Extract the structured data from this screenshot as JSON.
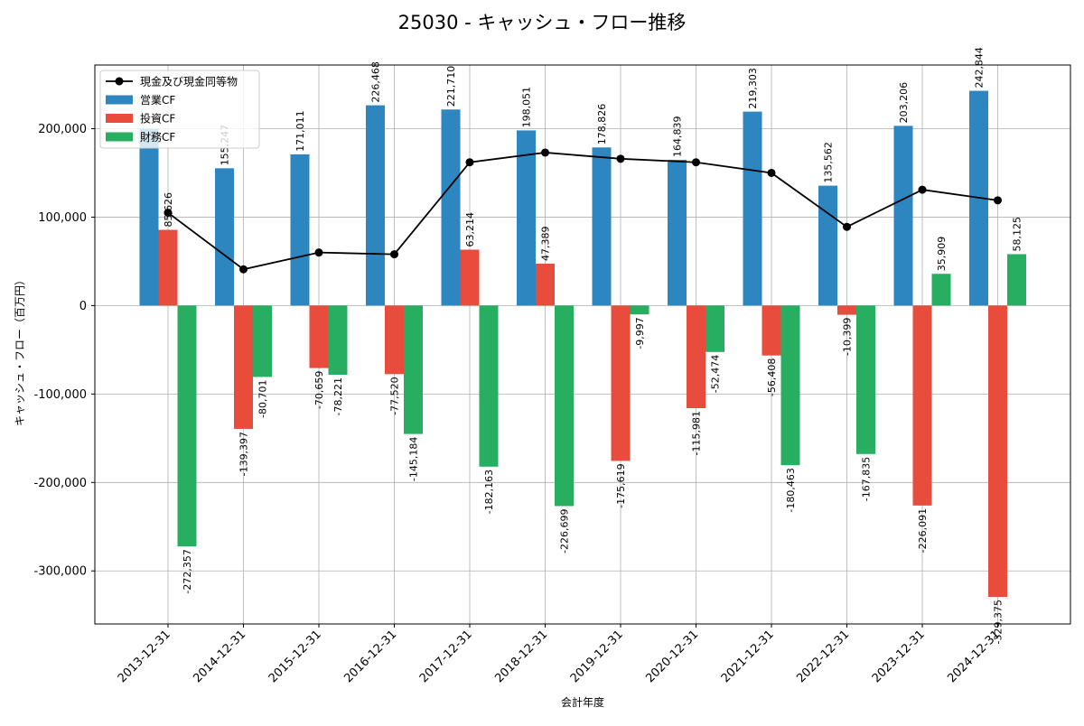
{
  "chart_data": {
    "type": "bar",
    "title": "25030 - キャッシュ・フロー推移",
    "xlabel": "会計年度",
    "ylabel": "キャッシュ・フロー（百万円）",
    "ylim": [
      -360000,
      272000
    ],
    "yticks": [
      -300000,
      -200000,
      -100000,
      0,
      100000,
      200000
    ],
    "ytick_labels": [
      "-300,000",
      "-200,000",
      "-100,000",
      "0",
      "100,000",
      "200,000"
    ],
    "grid": true,
    "legend_position": "top-left",
    "categories": [
      "2013-12-31",
      "2014-12-31",
      "2015-12-31",
      "2016-12-31",
      "2017-12-31",
      "2018-12-31",
      "2019-12-31",
      "2020-12-31",
      "2021-12-31",
      "2022-12-31",
      "2023-12-31",
      "2024-12-31"
    ],
    "series": [
      {
        "name": "営業CF",
        "kind": "bar",
        "color": "#2e86c1",
        "values": [
          200000,
          155247,
          171011,
          226468,
          221710,
          198051,
          178826,
          164839,
          219303,
          135562,
          203206,
          242844
        ],
        "labels": [
          "",
          "155,247",
          "171,011",
          "226,468",
          "221,710",
          "198,051",
          "178,826",
          "164,839",
          "219,303",
          "135,562",
          "203,206",
          "242,844"
        ]
      },
      {
        "name": "投資CF",
        "kind": "bar",
        "color": "#e74c3c",
        "values": [
          85626,
          -139397,
          -70659,
          -77520,
          63214,
          47389,
          -175619,
          -115981,
          -56408,
          -10399,
          -226091,
          -329375
        ],
        "labels": [
          "85,626",
          "-139,397",
          "-70,659",
          "-77,520",
          "63,214",
          "47,389",
          "-175,619",
          "-115,981",
          "-56,408",
          "-10,399",
          "-226,091",
          "-329,375"
        ]
      },
      {
        "name": "財務CF",
        "kind": "bar",
        "color": "#27ae60",
        "values": [
          -272357,
          -80701,
          -78221,
          -145184,
          -182163,
          -226699,
          -9997,
          -52474,
          -180463,
          -167835,
          35909,
          58125
        ],
        "labels": [
          "-272,357",
          "-80,701",
          "-78,221",
          "-145,184",
          "-182,163",
          "-226,699",
          "-9,997",
          "-52,474",
          "-180,463",
          "-167,835",
          "35,909",
          "58,125"
        ]
      },
      {
        "name": "現金及び現金同等物",
        "kind": "line",
        "color": "#000000",
        "values": [
          105000,
          41000,
          60000,
          58000,
          162000,
          173000,
          166000,
          162000,
          150000,
          89000,
          131000,
          119000
        ]
      }
    ]
  }
}
